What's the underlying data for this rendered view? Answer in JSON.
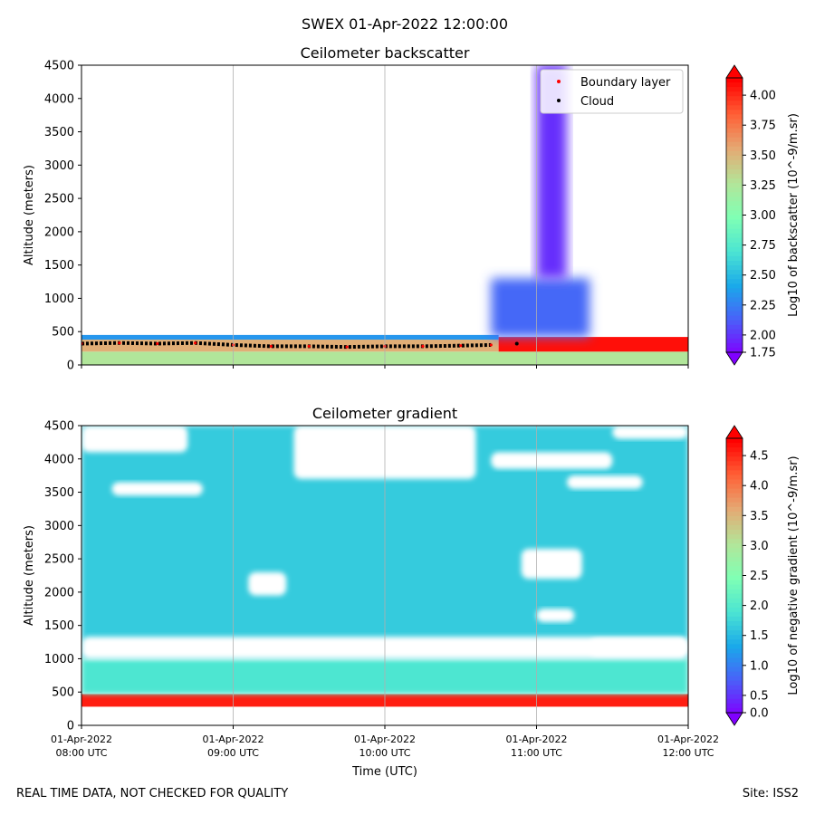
{
  "figure": {
    "suptitle": "SWEX 01-Apr-2022 12:00:00",
    "footer_left": "REAL TIME DATA, NOT CHECKED FOR QUALITY",
    "footer_right": "Site: ISS2"
  },
  "colors": {
    "rainbow": [
      "#8000ff",
      "#4a5ff9",
      "#1aa9ea",
      "#4ce5d2",
      "#80ffb4",
      "#b3e599",
      "#e5a973",
      "#ff5f36",
      "#ff0000"
    ],
    "boundary_layer": "#ff0000",
    "cloud": "#000000",
    "gridline": "#b0b0b0"
  },
  "chart_data": [
    {
      "type": "heatmap",
      "title": "Ceilometer backscatter",
      "xlabel": "",
      "ylabel": "Altitude (meters)",
      "x_unit": "hours UTC",
      "xlim": [
        8,
        12
      ],
      "ylim": [
        0,
        4500
      ],
      "x_ticks": [
        {
          "value": 8,
          "line1": "01-Apr-2022",
          "line2": "08:00 UTC"
        },
        {
          "value": 9,
          "line1": "01-Apr-2022",
          "line2": "09:00 UTC"
        },
        {
          "value": 10,
          "line1": "01-Apr-2022",
          "line2": "10:00 UTC"
        },
        {
          "value": 11,
          "line1": "01-Apr-2022",
          "line2": "11:00 UTC"
        },
        {
          "value": 12,
          "line1": "01-Apr-2022",
          "line2": "12:00 UTC"
        }
      ],
      "show_x_tick_labels": false,
      "y_ticks": [
        0,
        500,
        1000,
        1500,
        2000,
        2500,
        3000,
        3500,
        4000,
        4500
      ],
      "x_grid": [
        9,
        10,
        11
      ],
      "colorbar": {
        "label": "Log10 of backscatter (10^-9/m.sr)",
        "range": [
          1.75,
          4.25
        ],
        "ticks": [
          "1.75",
          "2.00",
          "2.25",
          "2.50",
          "2.75",
          "3.00",
          "3.25",
          "3.50",
          "3.75",
          "4.00"
        ],
        "tick_values": [
          1.75,
          2.0,
          2.25,
          2.5,
          2.75,
          3.0,
          3.25,
          3.5,
          3.75,
          4.0
        ]
      },
      "legend": {
        "placement": "top-right",
        "entries": [
          {
            "label": "Boundary layer",
            "color": "#ff0000"
          },
          {
            "label": "Cloud",
            "color": "#000000"
          }
        ]
      },
      "layers": [
        {
          "name": "near-surface layer",
          "x": [
            8,
            12
          ],
          "y": [
            0,
            200
          ],
          "value": 3.3
        },
        {
          "name": "aerosol layer",
          "x": [
            8,
            10.75
          ],
          "y": [
            200,
            400
          ],
          "value": 3.6
        },
        {
          "name": "aerosol top",
          "x": [
            8,
            10.75
          ],
          "y": [
            380,
            450
          ],
          "value": 2.3
        },
        {
          "name": "strong layer",
          "x": [
            10.75,
            12
          ],
          "y": [
            200,
            420
          ],
          "value": 4.2
        },
        {
          "name": "plume base",
          "x": [
            10.7,
            11.35
          ],
          "y": [
            420,
            1300
          ],
          "value": 2.1
        },
        {
          "name": "plume column",
          "x": [
            11.0,
            11.2
          ],
          "y": [
            1300,
            4500
          ],
          "value": 1.9
        }
      ],
      "boundary_layer_height": {
        "x": [
          8.0,
          8.25,
          8.5,
          8.75,
          9.0,
          9.25,
          9.5,
          9.75,
          10.0,
          10.25,
          10.5,
          10.7
        ],
        "y": [
          320,
          330,
          320,
          330,
          300,
          280,
          280,
          270,
          280,
          280,
          290,
          300
        ]
      },
      "cloud_points": {
        "x": [
          10.87
        ],
        "y": [
          320
        ]
      }
    },
    {
      "type": "heatmap",
      "title": "Ceilometer gradient",
      "xlabel": "Time (UTC)",
      "ylabel": "Altitude (meters)",
      "x_unit": "hours UTC",
      "xlim": [
        8,
        12
      ],
      "ylim": [
        0,
        4500
      ],
      "x_ticks": [
        {
          "value": 8,
          "line1": "01-Apr-2022",
          "line2": "08:00 UTC"
        },
        {
          "value": 9,
          "line1": "01-Apr-2022",
          "line2": "09:00 UTC"
        },
        {
          "value": 10,
          "line1": "01-Apr-2022",
          "line2": "10:00 UTC"
        },
        {
          "value": 11,
          "line1": "01-Apr-2022",
          "line2": "11:00 UTC"
        },
        {
          "value": 12,
          "line1": "01-Apr-2022",
          "line2": "12:00 UTC"
        }
      ],
      "show_x_tick_labels": true,
      "y_ticks": [
        0,
        500,
        1000,
        1500,
        2000,
        2500,
        3000,
        3500,
        4000,
        4500
      ],
      "x_grid": [
        9,
        10,
        11
      ],
      "colorbar": {
        "label": "Log10 of negative gradient (10^-9/m.sr)",
        "range": [
          0,
          5
        ],
        "ticks": [
          "0.0",
          "0.5",
          "1.0",
          "1.5",
          "2.0",
          "2.5",
          "3.0",
          "3.5",
          "4.0",
          "4.5"
        ],
        "tick_values": [
          0,
          0.5,
          1.0,
          1.5,
          2.0,
          2.5,
          3.0,
          3.5,
          4.0,
          4.5
        ]
      },
      "layers": [
        {
          "name": "background",
          "x": [
            8,
            12
          ],
          "y": [
            1000,
            4500
          ],
          "value": 1.6
        },
        {
          "name": "strong gradient layer",
          "x": [
            8,
            12
          ],
          "y": [
            280,
            470
          ],
          "value": 4.8
        },
        {
          "name": "lower transition",
          "x": [
            8,
            12
          ],
          "y": [
            470,
            1000
          ],
          "value": 1.9
        }
      ],
      "gaps": [
        {
          "x": [
            8,
            12
          ],
          "y": [
            1000,
            1330
          ]
        },
        {
          "x": [
            8,
            8.7
          ],
          "y": [
            4100,
            4500
          ]
        },
        {
          "x": [
            9.4,
            10.6
          ],
          "y": [
            3700,
            4500
          ]
        },
        {
          "x": [
            10.7,
            11.5
          ],
          "y": [
            3850,
            4100
          ]
        },
        {
          "x": [
            11.5,
            12
          ],
          "y": [
            4300,
            4500
          ]
        },
        {
          "x": [
            9.1,
            9.35
          ],
          "y": [
            1950,
            2300
          ]
        },
        {
          "x": [
            10.9,
            11.3
          ],
          "y": [
            2200,
            2650
          ]
        },
        {
          "x": [
            11.0,
            11.25
          ],
          "y": [
            1550,
            1750
          ]
        },
        {
          "x": [
            11.35,
            12
          ],
          "y": [
            1050,
            1300
          ]
        },
        {
          "x": [
            8.2,
            8.8
          ],
          "y": [
            3450,
            3650
          ]
        },
        {
          "x": [
            11.2,
            11.7
          ],
          "y": [
            3550,
            3750
          ]
        }
      ]
    }
  ]
}
